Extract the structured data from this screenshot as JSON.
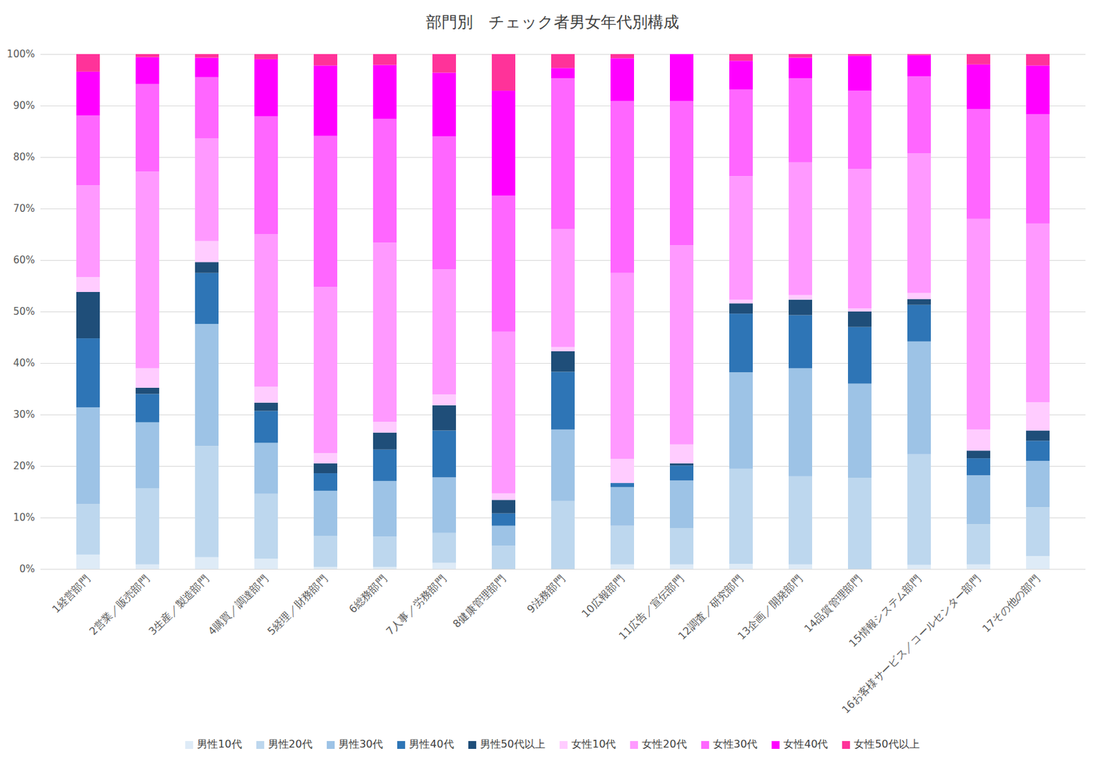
{
  "chart_data": {
    "type": "bar",
    "title": "部門別　チェック者男女年代別構成",
    "stacked": true,
    "grid": true,
    "legend": "bottom",
    "categories": [
      "1経営部門",
      "2営業／販売部門",
      "3生産／製造部門",
      "4購買／調達部門",
      "5経理／財務部門",
      "6総務部門",
      "7人事／労務部門",
      "8健康管理部門",
      "9法務部門",
      "10広報部門",
      "11広告／宣伝部門",
      "12調査／研究部門",
      "13企画／開発部門",
      "14品質管理部門",
      "15情報システム部門",
      "16お客様サービス／コールセンター部門",
      "17その他の部門"
    ],
    "ylim": [
      0,
      100
    ],
    "yticks": [
      {
        "value": 0,
        "label": "0%"
      },
      {
        "value": 10,
        "label": "10%"
      },
      {
        "value": 20,
        "label": "20%"
      },
      {
        "value": 30,
        "label": "30%"
      },
      {
        "value": 40,
        "label": "40%"
      },
      {
        "value": 50,
        "label": "50%"
      },
      {
        "value": 60,
        "label": "60%"
      },
      {
        "value": 70,
        "label": "70%"
      },
      {
        "value": 80,
        "label": "80%"
      },
      {
        "value": 90,
        "label": "90%"
      },
      {
        "value": 100,
        "label": "100%"
      }
    ],
    "series": [
      {
        "name": "男性10代",
        "color": "#deebf7",
        "values": [
          2.8,
          0.9,
          2.3,
          2.0,
          0.4,
          0.4,
          1.2,
          0,
          0,
          0.9,
          0.9,
          1.0,
          0.9,
          0,
          0.8,
          0.9,
          2.5
        ]
      },
      {
        "name": "男性20代",
        "color": "#bdd7ee",
        "values": [
          9.8,
          14.8,
          21.6,
          12.6,
          6.0,
          5.9,
          5.8,
          4.5,
          13.2,
          7.5,
          7.0,
          18.5,
          17.1,
          17.7,
          21.5,
          7.8,
          9.5
        ]
      },
      {
        "name": "男性30代",
        "color": "#9dc3e6",
        "values": [
          18.8,
          12.8,
          23.7,
          9.9,
          8.8,
          10.8,
          10.8,
          3.9,
          13.9,
          7.5,
          9.3,
          18.7,
          21.0,
          18.3,
          21.9,
          9.5,
          9.0
        ]
      },
      {
        "name": "男性40代",
        "color": "#2e75b6",
        "values": [
          13.4,
          5.5,
          9.9,
          6.2,
          3.4,
          6.1,
          9.1,
          2.4,
          11.2,
          0.8,
          2.9,
          11.4,
          10.3,
          11.0,
          7.1,
          3.3,
          3.9
        ]
      },
      {
        "name": "男性50代以上",
        "color": "#1f4e79",
        "values": [
          9.0,
          1.2,
          2.1,
          1.6,
          1.9,
          3.3,
          4.9,
          2.6,
          4.0,
          0,
          0.4,
          2.0,
          3.0,
          3.0,
          1.1,
          1.5,
          2.0
        ]
      },
      {
        "name": "女性10代",
        "color": "#ffccff",
        "values": [
          2.9,
          3.8,
          4.1,
          3.1,
          2.0,
          2.1,
          2.1,
          1.3,
          0.8,
          4.7,
          3.7,
          0.7,
          0.9,
          0.6,
          1.2,
          4.1,
          5.5
        ]
      },
      {
        "name": "女性20代",
        "color": "#ff99ff",
        "values": [
          17.8,
          38.2,
          19.9,
          29.6,
          32.3,
          34.8,
          24.3,
          31.4,
          22.9,
          36.1,
          38.7,
          24.0,
          25.8,
          27.1,
          27.1,
          40.9,
          34.7
        ]
      },
      {
        "name": "女性30代",
        "color": "#ff66ff",
        "values": [
          13.6,
          17.0,
          11.9,
          22.9,
          29.3,
          24.0,
          25.8,
          26.4,
          29.3,
          33.4,
          28.0,
          16.8,
          16.3,
          15.2,
          15.0,
          21.3,
          21.2
        ]
      },
      {
        "name": "女性40代",
        "color": "#ff00ff",
        "values": [
          8.5,
          5.2,
          3.8,
          11.1,
          13.7,
          10.5,
          12.4,
          20.4,
          2.0,
          8.3,
          9.1,
          5.6,
          4.0,
          6.8,
          4.1,
          8.7,
          9.5
        ]
      },
      {
        "name": "女性50代以上",
        "color": "#ff3399",
        "values": [
          3.4,
          0.6,
          0.7,
          1.0,
          2.2,
          2.1,
          3.6,
          7.1,
          2.7,
          0.8,
          0,
          1.3,
          0.7,
          0.3,
          0.2,
          2.0,
          2.2
        ]
      }
    ]
  }
}
